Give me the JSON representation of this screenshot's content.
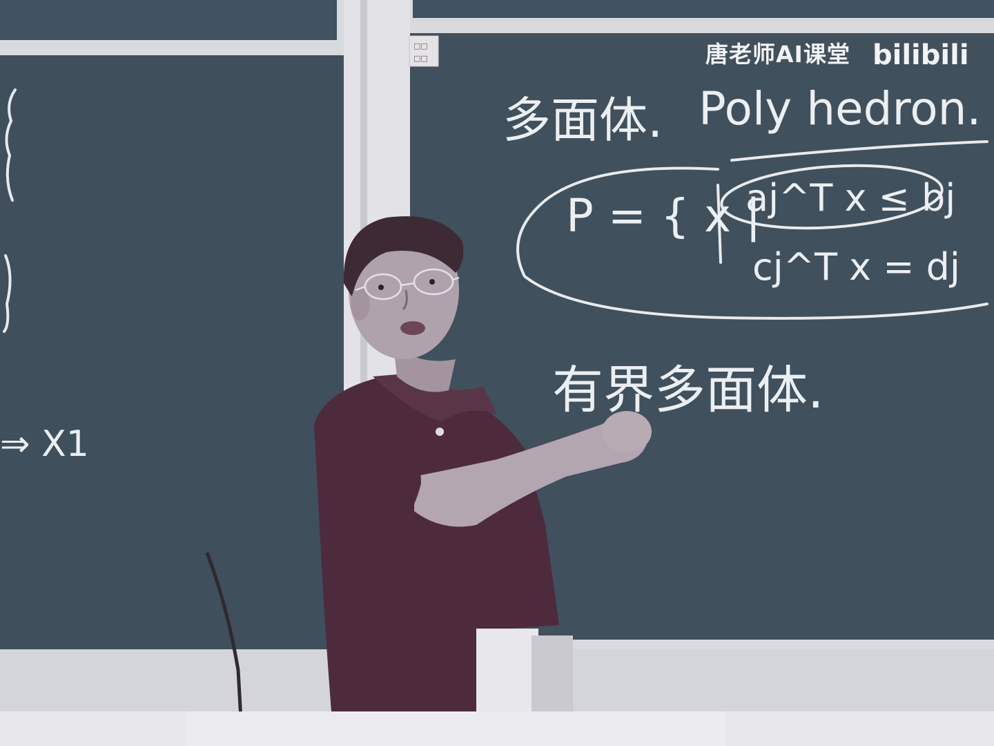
{
  "watermark": {
    "channel": "唐老师AI课堂",
    "platform_logo": "bilibili"
  },
  "board_right": {
    "line1": {
      "zh": "多面体.",
      "en": "Poly hedron."
    },
    "formula": {
      "lhs": "P = { x |",
      "ineq": "aj^T x ≤ bj",
      "eq": "cj^T x = dj"
    },
    "line2": "有界多面体."
  },
  "board_left": {
    "fragment": "⇒ X1"
  },
  "colors": {
    "chalkboard": "#40505c",
    "frame": "#e6e6ea",
    "chalk": "#e9ecef",
    "shirt": "#4c2b3c",
    "skin": "#b3a6b0"
  }
}
